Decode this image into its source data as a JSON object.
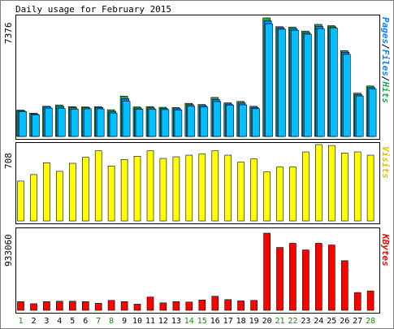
{
  "title": "Daily usage for February 2015",
  "colors": {
    "background": "#ffffff",
    "frame_outer": "#808080",
    "panel_border": "#000000",
    "hits": "#22aa44",
    "files": "#0080ff",
    "pages": "#00c0ff",
    "visits": "#ffff00",
    "kbytes": "#ff0000",
    "weekday_label": "#000000",
    "weekend_label": "#009900"
  },
  "labels": {
    "panel1_right": [
      "Pages",
      "/",
      "Files",
      "/",
      "Hits"
    ],
    "panel1_right_colors": [
      "#0080ff",
      "#000000",
      "#0080ff",
      "#000000",
      "#22aa44"
    ],
    "panel2_right": "Visits",
    "panel3_right": "KBytes"
  },
  "chart_data": [
    {
      "type": "bar",
      "title": "Daily usage for February 2015",
      "ylabel": "Pages/Files/Hits",
      "ymax_label": "7376",
      "ylim": [
        0,
        7376
      ],
      "categories": [
        "1",
        "2",
        "3",
        "4",
        "5",
        "6",
        "7",
        "8",
        "9",
        "10",
        "11",
        "12",
        "13",
        "14",
        "15",
        "16",
        "17",
        "18",
        "19",
        "20",
        "21",
        "22",
        "23",
        "24",
        "25",
        "26",
        "27",
        "28"
      ],
      "weekend_days": [
        "1",
        "7",
        "8",
        "14",
        "15",
        "21",
        "22",
        "28"
      ],
      "series": [
        {
          "name": "Hits",
          "values": [
            1640,
            1450,
            1880,
            1960,
            1860,
            1840,
            1860,
            1660,
            2510,
            1840,
            1860,
            1820,
            1800,
            2060,
            1990,
            2430,
            2090,
            2180,
            1880,
            7376,
            6830,
            6800,
            6560,
            6970,
            6890,
            5340,
            2700,
            3140
          ]
        },
        {
          "name": "Files",
          "values": [
            1600,
            1400,
            1840,
            1860,
            1790,
            1790,
            1800,
            1560,
            2350,
            1770,
            1780,
            1740,
            1730,
            1980,
            1920,
            2300,
            2020,
            2080,
            1810,
            7200,
            6760,
            6700,
            6450,
            6840,
            6820,
            5240,
            2600,
            3040
          ]
        },
        {
          "name": "Pages",
          "values": [
            1550,
            1350,
            1760,
            1740,
            1700,
            1720,
            1720,
            1460,
            2190,
            1700,
            1700,
            1670,
            1650,
            1880,
            1830,
            2170,
            1940,
            1970,
            1730,
            7000,
            6670,
            6600,
            6360,
            6700,
            6750,
            5110,
            2520,
            2950
          ]
        }
      ]
    },
    {
      "type": "bar",
      "ylabel": "Visits",
      "ymax_label": "708",
      "ylim": [
        0,
        708
      ],
      "categories": [
        "1",
        "2",
        "3",
        "4",
        "5",
        "6",
        "7",
        "8",
        "9",
        "10",
        "11",
        "12",
        "13",
        "14",
        "15",
        "16",
        "17",
        "18",
        "19",
        "20",
        "21",
        "22",
        "23",
        "24",
        "25",
        "26",
        "27",
        "28"
      ],
      "series": [
        {
          "name": "Visits",
          "values": [
            370,
            430,
            540,
            460,
            535,
            590,
            650,
            510,
            570,
            600,
            650,
            580,
            595,
            610,
            620,
            650,
            610,
            545,
            575,
            455,
            500,
            500,
            640,
            708,
            700,
            630,
            640,
            610
          ]
        }
      ]
    },
    {
      "type": "bar",
      "ylabel": "KBytes",
      "ymax_label": "933060",
      "ylim": [
        0,
        933060
      ],
      "categories": [
        "1",
        "2",
        "3",
        "4",
        "5",
        "6",
        "7",
        "8",
        "9",
        "10",
        "11",
        "12",
        "13",
        "14",
        "15",
        "16",
        "17",
        "18",
        "19",
        "20",
        "21",
        "22",
        "23",
        "24",
        "25",
        "26",
        "27",
        "28"
      ],
      "series": [
        {
          "name": "KBytes",
          "values": [
            105000,
            80000,
            105000,
            110000,
            110000,
            105000,
            85000,
            120000,
            105000,
            75000,
            160000,
            90000,
            105000,
            100000,
            125000,
            170000,
            130000,
            115000,
            120000,
            933060,
            760000,
            810000,
            730000,
            810000,
            790000,
            600000,
            215000,
            235000
          ]
        }
      ]
    }
  ]
}
